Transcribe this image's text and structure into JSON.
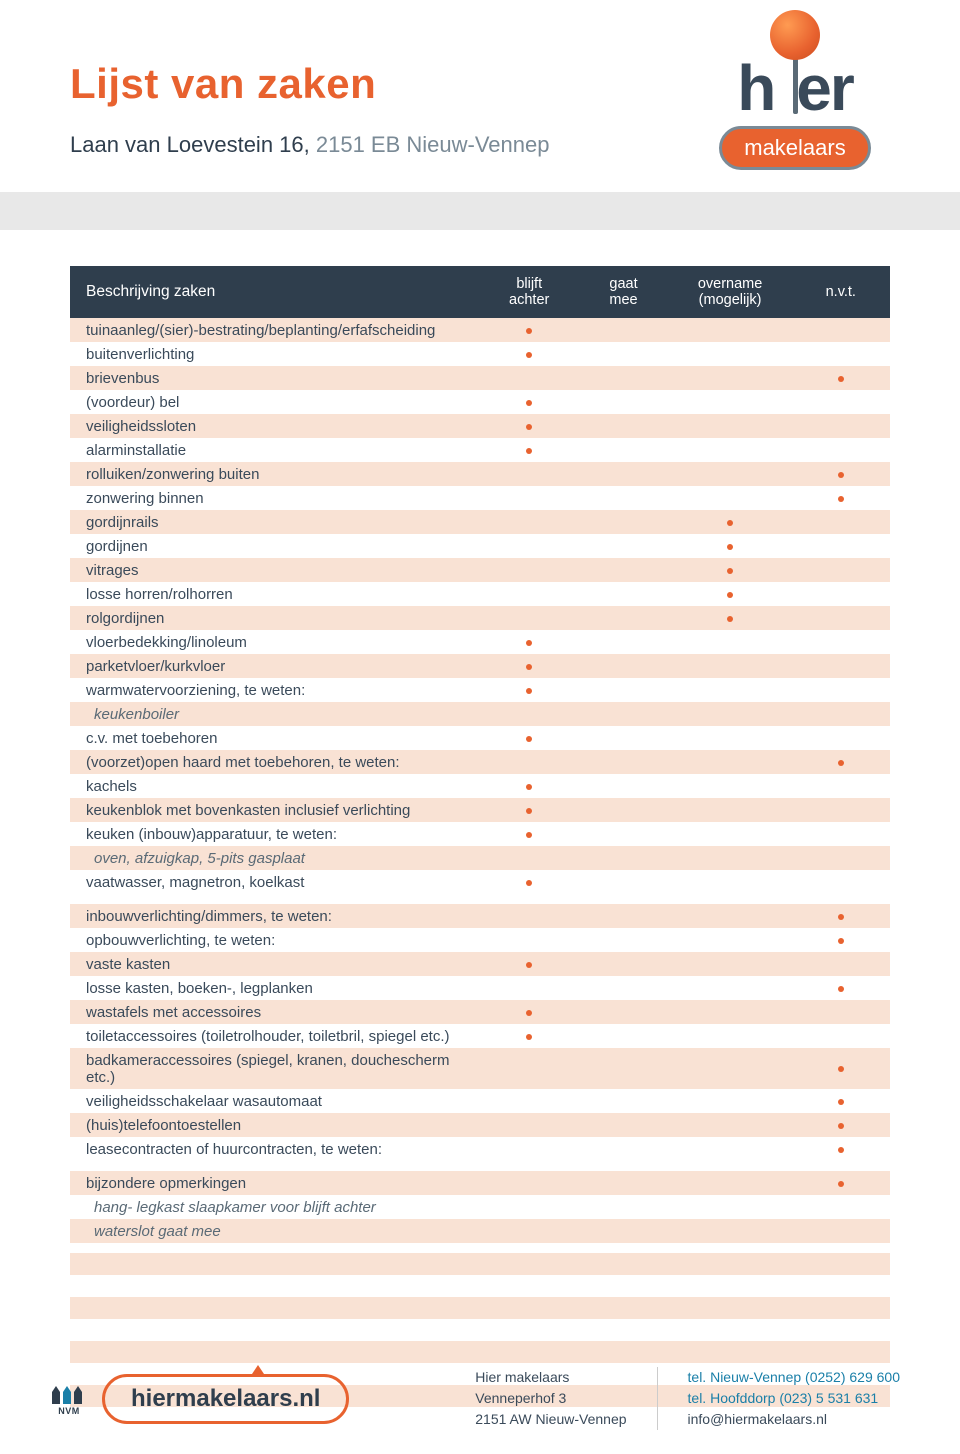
{
  "header": {
    "title": "Lijst van zaken",
    "address_street": "Laan van Loevestein 16,",
    "address_city": "2151 EB Nieuw-Vennep"
  },
  "logo": {
    "word_left": "h",
    "word_right": "er",
    "tagline": "makelaars"
  },
  "colors": {
    "accent": "#e8622f",
    "header_bg": "#2f3e4d",
    "row_odd": "#f9e2d4",
    "row_even": "#ffffff",
    "text": "#3a4a5a",
    "link": "#1a7fa8"
  },
  "columns": {
    "desc": "Beschrijving zaken",
    "c1_a": "blijft",
    "c1_b": "achter",
    "c2_a": "gaat",
    "c2_b": "mee",
    "c3_a": "overname",
    "c3_b": "(mogelijk)",
    "c4": "n.v.t."
  },
  "rows": [
    {
      "label": "tuinaanleg/(sier)-bestrating/beplanting/erfafscheiding",
      "col": 1
    },
    {
      "label": "buitenverlichting",
      "col": 1
    },
    {
      "label": "brievenbus",
      "col": 4
    },
    {
      "label": "(voordeur) bel",
      "col": 1
    },
    {
      "label": "veiligheidssloten",
      "col": 1
    },
    {
      "label": "alarminstallatie",
      "col": 1
    },
    {
      "label": "rolluiken/zonwering buiten",
      "col": 4
    },
    {
      "label": "zonwering binnen",
      "col": 4
    },
    {
      "label": "gordijnrails",
      "col": 3
    },
    {
      "label": "gordijnen",
      "col": 3
    },
    {
      "label": "vitrages",
      "col": 3
    },
    {
      "label": "losse horren/rolhorren",
      "col": 3
    },
    {
      "label": "rolgordijnen",
      "col": 3
    },
    {
      "label": "vloerbedekking/linoleum",
      "col": 1
    },
    {
      "label": "parketvloer/kurkvloer",
      "col": 1
    },
    {
      "label": "warmwatervoorziening, te weten:",
      "col": 1
    },
    {
      "label": "keukenboiler",
      "italic": true
    },
    {
      "label": "c.v. met toebehoren",
      "col": 1
    },
    {
      "label": "(voorzet)open haard met toebehoren, te weten:",
      "col": 4
    },
    {
      "label": "kachels",
      "col": 1
    },
    {
      "label": "keukenblok met bovenkasten inclusief verlichting",
      "col": 1
    },
    {
      "label": "keuken (inbouw)apparatuur, te weten:",
      "col": 1
    },
    {
      "label": "oven, afzuigkap, 5-pits gasplaat",
      "italic": true
    },
    {
      "label": "vaatwasser, magnetron, koelkast",
      "col": 1
    },
    {
      "spacer": true
    },
    {
      "label": "inbouwverlichting/dimmers, te weten:",
      "col": 4
    },
    {
      "label": "opbouwverlichting, te weten:",
      "col": 4
    },
    {
      "label": "vaste kasten",
      "col": 1
    },
    {
      "label": "losse kasten, boeken-, legplanken",
      "col": 4
    },
    {
      "label": "wastafels met accessoires",
      "col": 1
    },
    {
      "label": "toiletaccessoires (toiletrolhouder, toiletbril, spiegel etc.)",
      "col": 1
    },
    {
      "label": "badkameraccessoires (spiegel, kranen, douchescherm etc.)",
      "col": 4
    },
    {
      "label": "veiligheidsschakelaar wasautomaat",
      "col": 4
    },
    {
      "label": "(huis)telefoontoestellen",
      "col": 4
    },
    {
      "label": "leasecontracten of huurcontracten, te weten:",
      "col": 4
    },
    {
      "spacer": true
    },
    {
      "label": "bijzondere opmerkingen",
      "col": 4
    },
    {
      "label": "hang- legkast slaapkamer voor blijft achter",
      "italic": true
    },
    {
      "label": "waterslot gaat mee",
      "italic": true
    },
    {
      "spacer": true
    },
    {
      "label": ""
    },
    {
      "label": ""
    },
    {
      "label": ""
    },
    {
      "label": ""
    },
    {
      "label": ""
    },
    {
      "label": ""
    },
    {
      "label": ""
    }
  ],
  "footer": {
    "nvm_label": "NVM",
    "site": "hiermakelaars.nl",
    "company": "Hier makelaars",
    "addr1": "Venneperhof 3",
    "addr2": "2151 AW  Nieuw-Vennep",
    "tel1": "tel. Nieuw-Vennep (0252) 629 600",
    "tel2": "tel. Hoofddorp (023) 5 531 631",
    "email": "info@hiermakelaars.nl"
  }
}
